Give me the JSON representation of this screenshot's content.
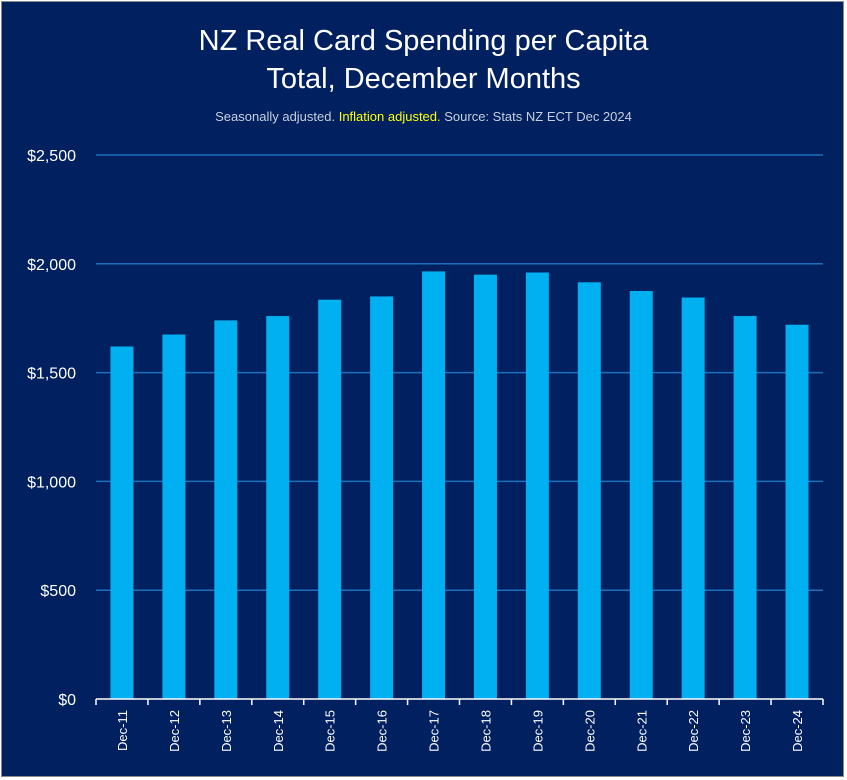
{
  "chart_data": {
    "type": "bar",
    "title_line1": "NZ Real Card Spending per Capita",
    "title_line2": "Total, December Months",
    "subtitle_part1": "Seasonally adjusted. ",
    "subtitle_highlight": "Inflation adjusted.",
    "subtitle_part2": " Source: Stats NZ ECT Dec 2024",
    "categories": [
      "Dec-11",
      "Dec-12",
      "Dec-13",
      "Dec-14",
      "Dec-15",
      "Dec-16",
      "Dec-17",
      "Dec-18",
      "Dec-19",
      "Dec-20",
      "Dec-21",
      "Dec-22",
      "Dec-23",
      "Dec-24"
    ],
    "values": [
      1620,
      1675,
      1740,
      1760,
      1835,
      1850,
      1965,
      1950,
      1960,
      1915,
      1875,
      1845,
      1760,
      1720
    ],
    "ylim": [
      0,
      2500
    ],
    "yticks": [
      0,
      500,
      1000,
      1500,
      2000,
      2500
    ],
    "ytick_labels": [
      "$0",
      "$500",
      "$1,000",
      "$1,500",
      "$2,000",
      "$2,500"
    ],
    "xlabel": "",
    "ylabel": "",
    "grid": true,
    "colors": {
      "background": "#002060",
      "bar": "#00b0f0",
      "grid": "#1f6fbd",
      "text": "#ffffff",
      "subtitle": "#c8cfdc",
      "highlight": "#ffff00"
    }
  }
}
